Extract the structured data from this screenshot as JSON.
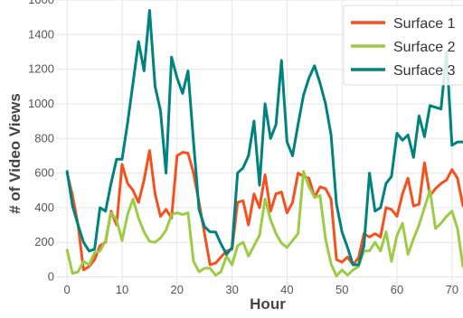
{
  "chart_data": {
    "type": "line",
    "xlabel": "Hour",
    "ylabel": "# of Video Views",
    "xlim": [
      -2,
      72
    ],
    "ylim": [
      -60,
      1600
    ],
    "xticks": [
      0,
      10,
      20,
      30,
      40,
      50,
      60,
      70
    ],
    "yticks": [
      0,
      200,
      400,
      600,
      800,
      1000,
      1200,
      1400,
      1600
    ],
    "grid": true,
    "legend_position": "top-right",
    "series": [
      {
        "name": "Surface 1",
        "color": "#f4511e",
        "values": [
          600,
          470,
          300,
          40,
          60,
          100,
          180,
          200,
          380,
          300,
          650,
          540,
          500,
          430,
          560,
          730,
          480,
          350,
          390,
          340,
          700,
          720,
          715,
          600,
          430,
          250,
          70,
          80,
          115,
          150,
          160,
          430,
          440,
          300,
          480,
          400,
          590,
          380,
          480,
          490,
          370,
          430,
          600,
          580,
          570,
          460,
          520,
          510,
          450,
          100,
          85,
          115,
          70,
          110,
          250,
          230,
          250,
          230,
          400,
          390,
          350,
          480,
          570,
          410,
          420,
          660,
          470,
          510,
          540,
          560,
          620,
          570,
          410
        ]
      },
      {
        "name": "Surface 2",
        "color": "#9ccc45",
        "values": [
          155,
          20,
          30,
          90,
          70,
          140,
          150,
          210,
          370,
          330,
          210,
          360,
          450,
          340,
          260,
          205,
          200,
          225,
          270,
          360,
          370,
          360,
          370,
          90,
          30,
          50,
          50,
          10,
          30,
          120,
          70,
          180,
          200,
          120,
          180,
          240,
          450,
          330,
          250,
          195,
          170,
          210,
          250,
          610,
          520,
          460,
          470,
          220,
          75,
          5,
          40,
          10,
          40,
          60,
          150,
          150,
          200,
          150,
          260,
          90,
          240,
          310,
          130,
          220,
          300,
          400,
          500,
          280,
          310,
          350,
          380,
          280,
          60
        ]
      },
      {
        "name": "Surface 3",
        "color": "#00827f",
        "values": [
          610,
          410,
          300,
          200,
          150,
          160,
          400,
          380,
          540,
          680,
          680,
          890,
          1120,
          1360,
          1190,
          1540,
          1100,
          960,
          600,
          1270,
          1150,
          1060,
          1190,
          780,
          390,
          290,
          260,
          260,
          190,
          130,
          170,
          600,
          630,
          700,
          900,
          530,
          1000,
          800,
          880,
          1250,
          780,
          700,
          880,
          1050,
          1150,
          1220,
          1120,
          1000,
          820,
          420,
          260,
          170,
          70,
          70,
          180,
          600,
          380,
          400,
          540,
          580,
          830,
          790,
          820,
          690,
          930,
          810,
          990,
          980,
          970,
          1300,
          760,
          780,
          780
        ]
      }
    ]
  }
}
